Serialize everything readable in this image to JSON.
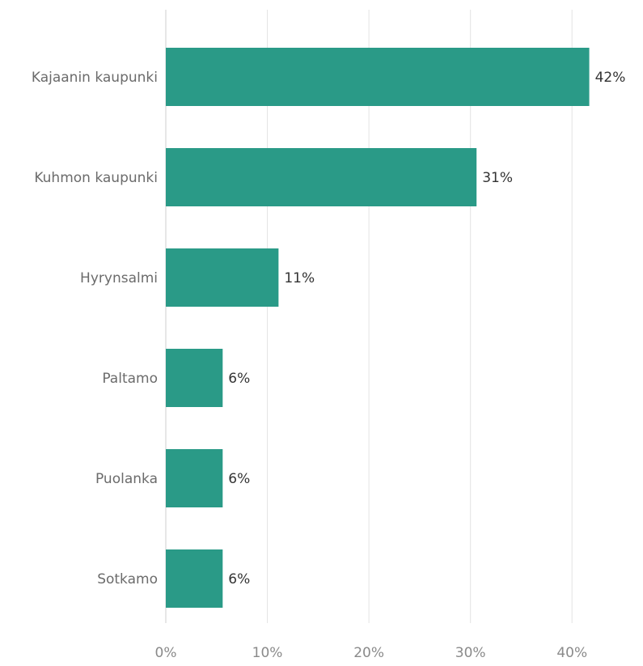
{
  "chart_data": {
    "type": "bar",
    "orientation": "horizontal",
    "categories": [
      "Kajaanin kaupunki",
      "Kuhmon kaupunki",
      "Hyrynsalmi",
      "Paltamo",
      "Puolanka",
      "Sotkamo"
    ],
    "values": [
      41.7,
      30.6,
      11.1,
      5.6,
      5.6,
      5.6
    ],
    "value_labels": [
      "42%",
      "31%",
      "11%",
      "6%",
      "6%",
      "6%"
    ],
    "x_ticks": [
      0,
      10,
      20,
      30,
      40
    ],
    "x_tick_labels": [
      "0%",
      "10%",
      "20%",
      "30%",
      "40%"
    ],
    "xlim": [
      0,
      45
    ],
    "grid": true,
    "bar_color": "#2a9a87",
    "title": "",
    "xlabel": "",
    "ylabel": ""
  }
}
